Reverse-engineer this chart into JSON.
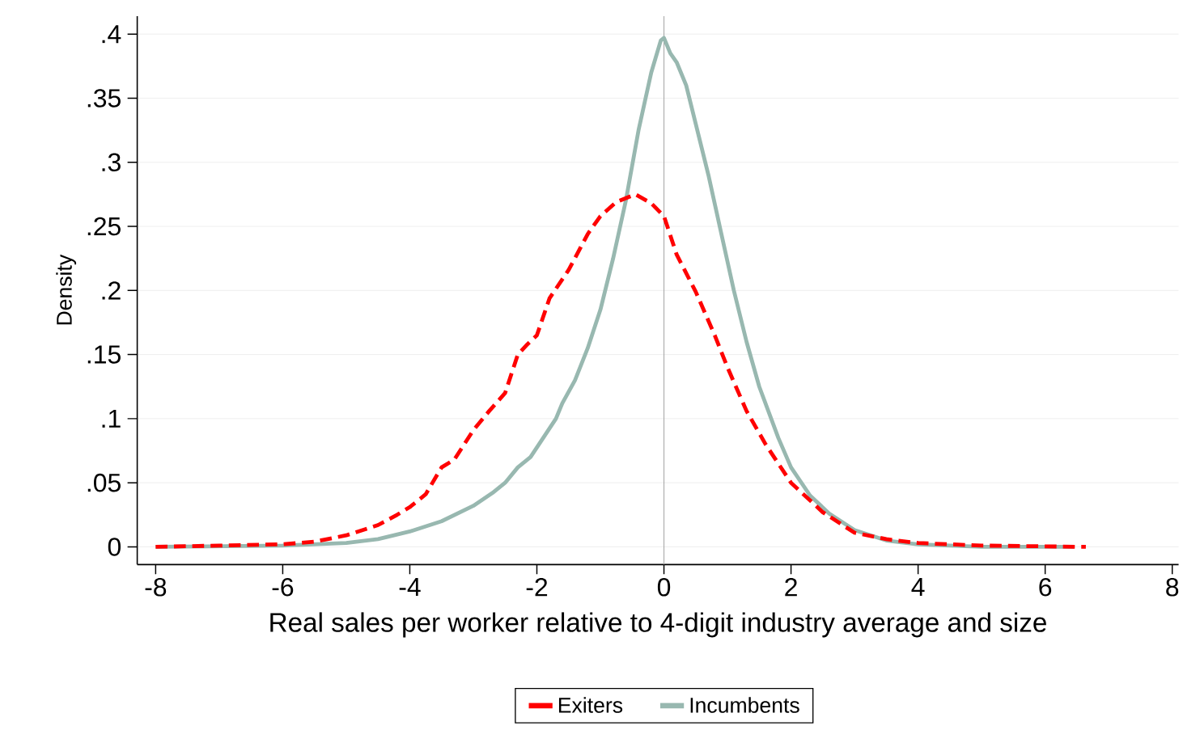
{
  "chart_data": {
    "type": "line",
    "xlabel": "Real sales per worker relative to 4-digit industry average and size",
    "ylabel": "Density",
    "xlim": [
      -8.29,
      8.1
    ],
    "ylim": [
      -0.0138,
      0.414
    ],
    "xticks": [
      -8,
      -6,
      -4,
      -2,
      0,
      2,
      4,
      6,
      8
    ],
    "yticks": [
      0,
      {
        "value": 0.05,
        "label": ".05"
      },
      {
        "value": 0.1,
        "label": ".1"
      },
      {
        "value": 0.15,
        "label": ".15"
      },
      {
        "value": 0.2,
        "label": ".2"
      },
      {
        "value": 0.25,
        "label": ".25"
      },
      {
        "value": 0.3,
        "label": ".3"
      },
      {
        "value": 0.35,
        "label": ".35"
      },
      {
        "value": 0.4,
        "label": ".4"
      }
    ],
    "grid": "y",
    "legend": "bottom",
    "marker": "none",
    "ref_lines": [
      {
        "axis": "x",
        "value": 0,
        "color": "#a8a8a8"
      }
    ],
    "series": [
      {
        "name": "Exiters",
        "color": "#ff0000",
        "line_style": "dashed",
        "x": [
          -8,
          -7,
          -6,
          -5.5,
          -5,
          -4.5,
          -4.2,
          -4,
          -3.75,
          -3.5,
          -3.3,
          -3,
          -2.75,
          -2.5,
          -2.3,
          -2.15,
          -2,
          -1.8,
          -1.5,
          -1.2,
          -1,
          -0.75,
          -0.45,
          -0.2,
          0,
          0.2,
          0.5,
          0.8,
          1,
          1.3,
          1.6,
          2,
          2.5,
          3,
          3.5,
          4,
          5,
          6.64
        ],
        "values": [
          0,
          0.001,
          0.002,
          0.004,
          0.009,
          0.017,
          0.025,
          0.031,
          0.041,
          0.062,
          0.068,
          0.091,
          0.106,
          0.12,
          0.15,
          0.158,
          0.165,
          0.194,
          0.216,
          0.244,
          0.258,
          0.269,
          0.275,
          0.268,
          0.258,
          0.228,
          0.199,
          0.165,
          0.14,
          0.106,
          0.08,
          0.05,
          0.027,
          0.011,
          0.006,
          0.003,
          0.001,
          0
        ]
      },
      {
        "name": "Incumbents",
        "color": "#98b8b0",
        "line_style": "solid",
        "x": [
          -8,
          -6,
          -5,
          -4.5,
          -4,
          -3.5,
          -3,
          -2.7,
          -2.5,
          -2.3,
          -2.1,
          -1.9,
          -1.7,
          -1.6,
          -1.4,
          -1.2,
          -1,
          -0.8,
          -0.6,
          -0.4,
          -0.2,
          -0.05,
          0,
          0.1,
          0.2,
          0.35,
          0.5,
          0.7,
          0.9,
          1.1,
          1.3,
          1.5,
          1.8,
          2,
          2.3,
          2.6,
          3,
          3.5,
          4,
          5,
          6.45
        ],
        "values": [
          0,
          0.001,
          0.003,
          0.006,
          0.012,
          0.02,
          0.032,
          0.042,
          0.05,
          0.062,
          0.07,
          0.085,
          0.1,
          0.112,
          0.13,
          0.155,
          0.185,
          0.225,
          0.27,
          0.325,
          0.37,
          0.395,
          0.397,
          0.385,
          0.378,
          0.36,
          0.33,
          0.29,
          0.245,
          0.2,
          0.16,
          0.125,
          0.085,
          0.062,
          0.04,
          0.026,
          0.013,
          0.005,
          0.002,
          0,
          0
        ]
      }
    ]
  }
}
